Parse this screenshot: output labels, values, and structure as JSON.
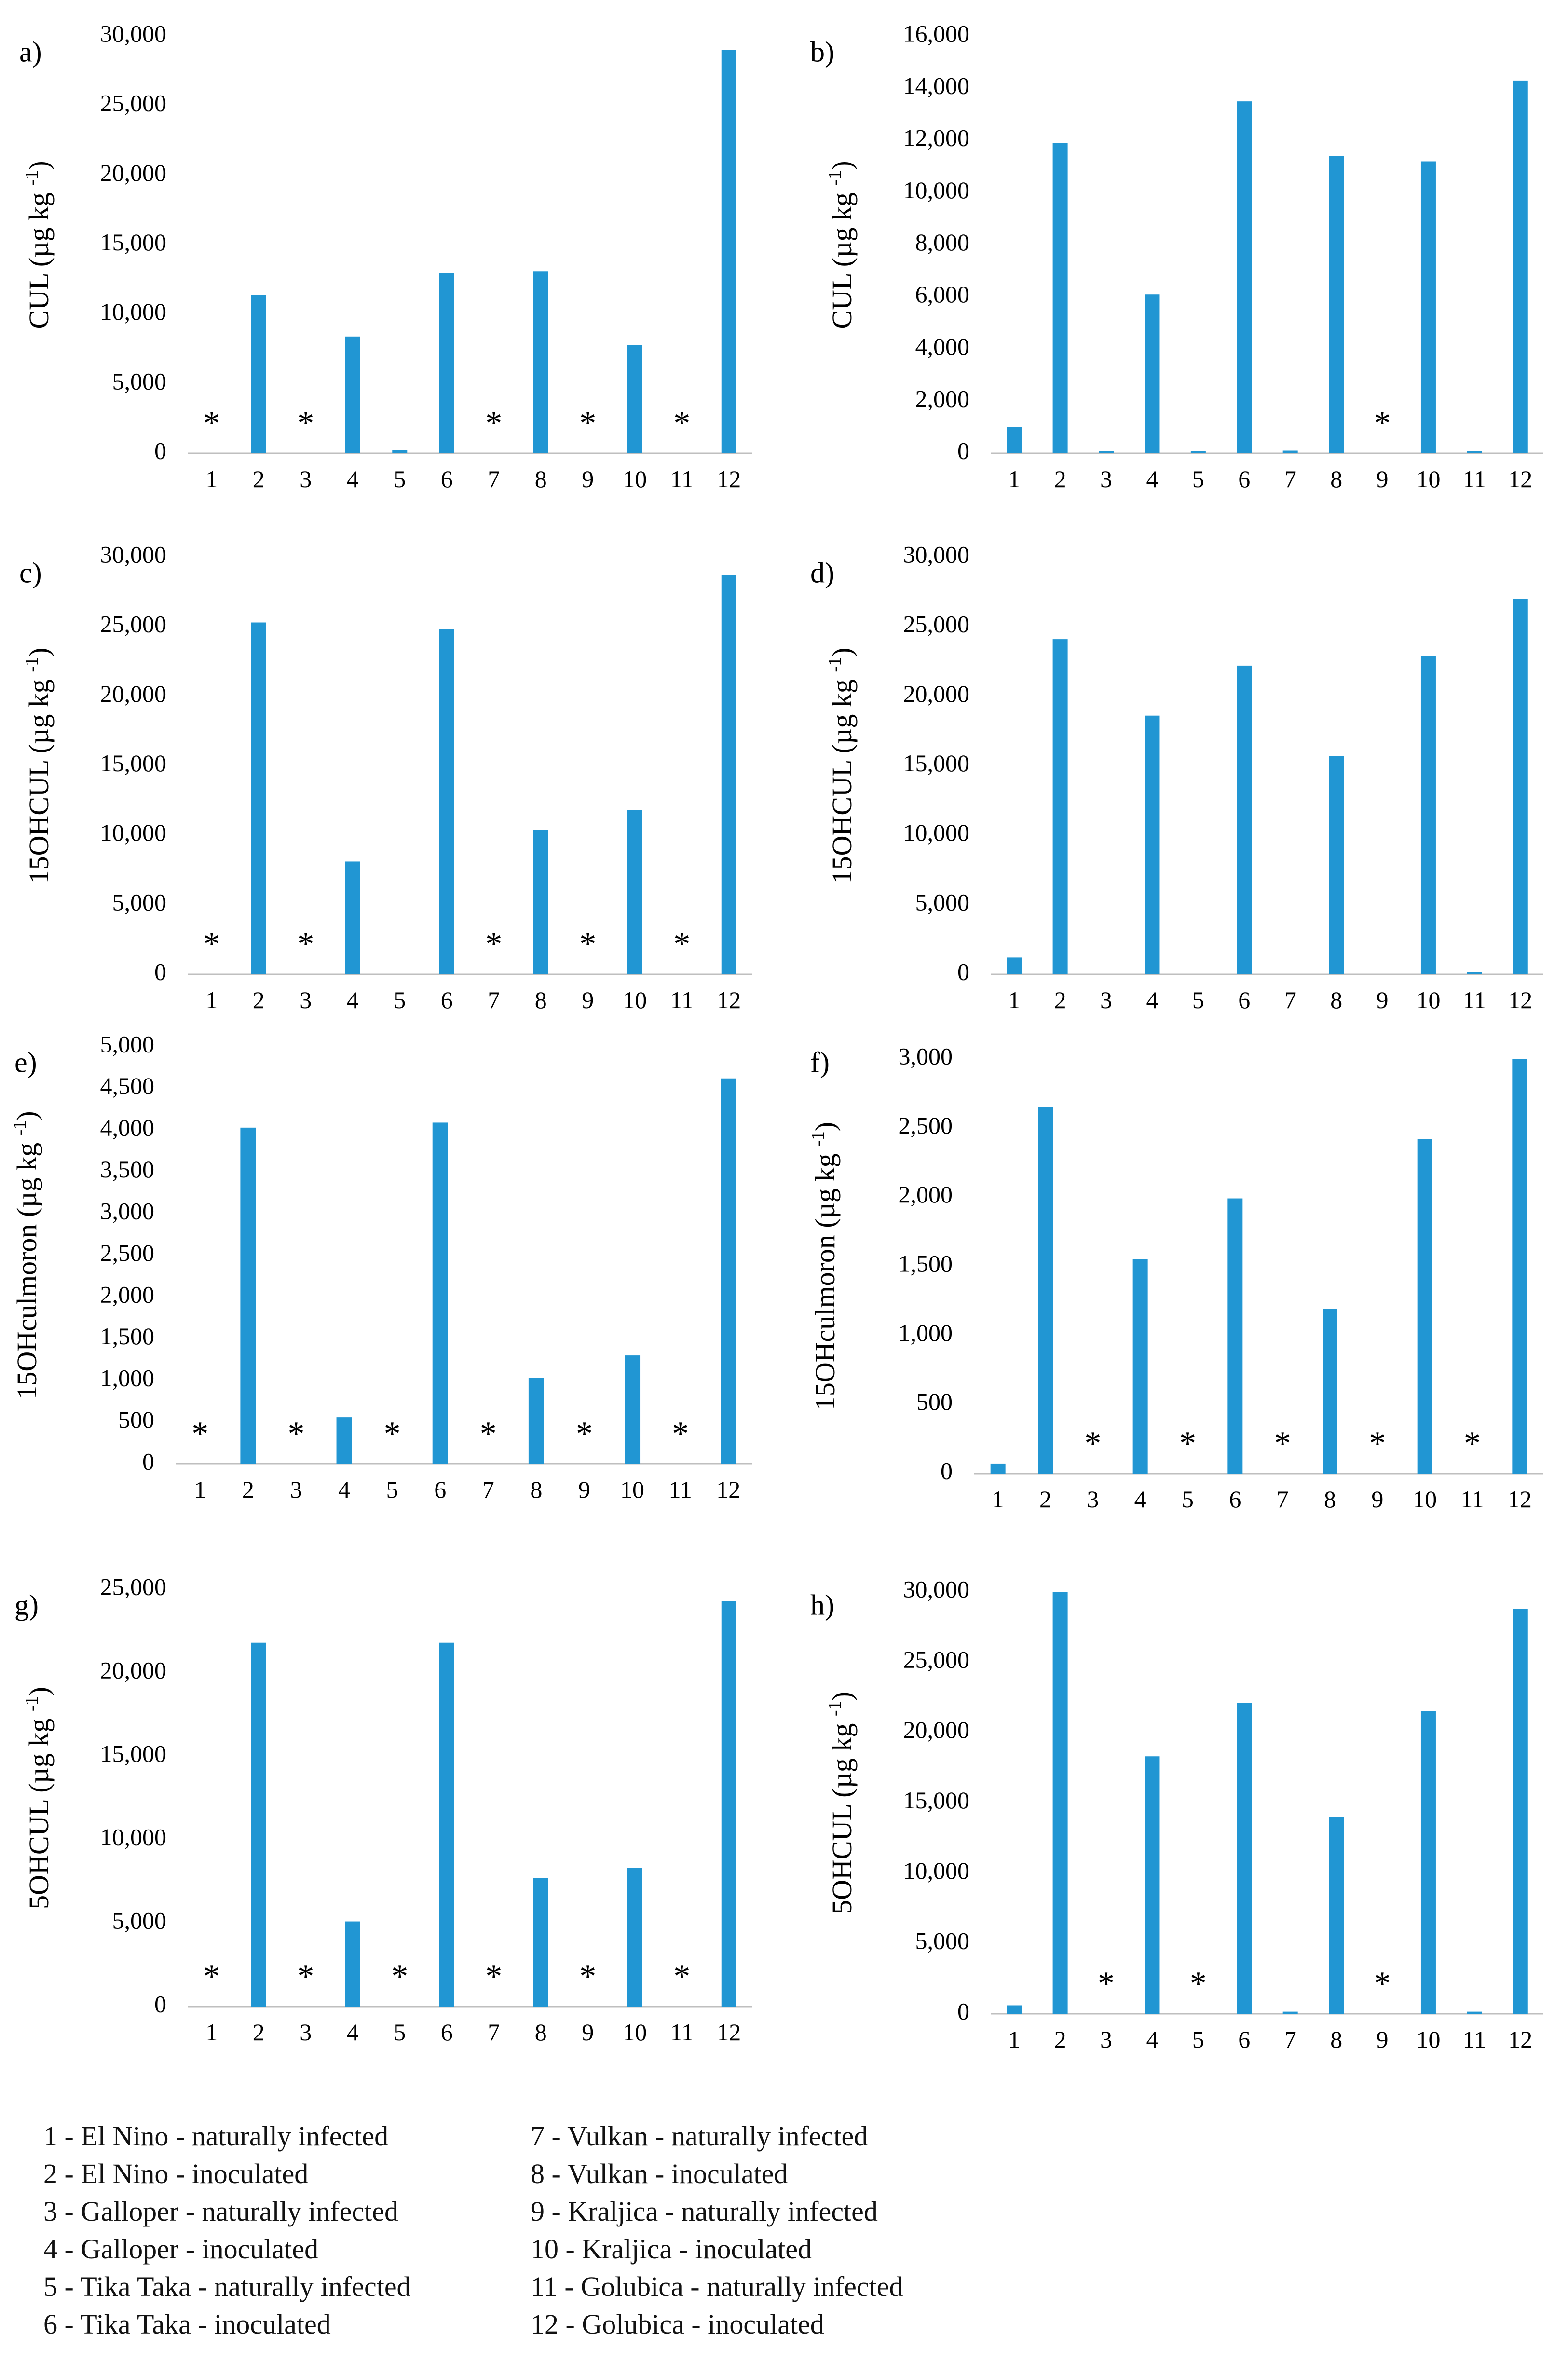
{
  "chart_data": [
    {
      "panel": "a)",
      "type": "bar",
      "ylabel": "CUL (µg kg",
      "ylabel_sup": "-1",
      "ylabel_close": ")",
      "categories": [
        "1",
        "2",
        "3",
        "4",
        "5",
        "6",
        "7",
        "8",
        "9",
        "10",
        "11",
        "12"
      ],
      "values": [
        0,
        11400,
        0,
        8400,
        250,
        13000,
        0,
        13100,
        0,
        7800,
        0,
        29000
      ],
      "ylim": [
        0,
        30000
      ],
      "yticks": [
        0,
        5000,
        10000,
        15000,
        20000,
        25000,
        30000
      ],
      "ytick_labels": [
        "0",
        "5,000",
        "10,000",
        "15,000",
        "20,000",
        "25,000",
        "30,000"
      ],
      "asterisks": [
        1,
        3,
        7,
        9,
        11
      ],
      "asterisk_label": "*",
      "color": "#2196d3"
    },
    {
      "panel": "b)",
      "type": "bar",
      "ylabel": "CUL (µg kg",
      "ylabel_sup": "-1",
      "ylabel_close": ")",
      "categories": [
        "1",
        "2",
        "3",
        "4",
        "5",
        "6",
        "7",
        "8",
        "9",
        "10",
        "11",
        "12"
      ],
      "values": [
        1000,
        11900,
        60,
        6100,
        50,
        13500,
        120,
        11400,
        0,
        11200,
        60,
        14300
      ],
      "ylim": [
        0,
        16000
      ],
      "yticks": [
        0,
        2000,
        4000,
        6000,
        8000,
        10000,
        12000,
        14000,
        16000
      ],
      "ytick_labels": [
        "0",
        "2,000",
        "4,000",
        "6,000",
        "8,000",
        "10,000",
        "12,000",
        "14,000",
        "16,000"
      ],
      "asterisks": [
        9
      ],
      "asterisk_label": "*",
      "color": "#2196d3"
    },
    {
      "panel": "c)",
      "type": "bar",
      "ylabel": "15OHCUL (µg kg",
      "ylabel_sup": "-1",
      "ylabel_close": ")",
      "categories": [
        "1",
        "2",
        "3",
        "4",
        "5",
        "6",
        "7",
        "8",
        "9",
        "10",
        "11",
        "12"
      ],
      "values": [
        0,
        25300,
        0,
        8100,
        0,
        24800,
        0,
        10400,
        0,
        11800,
        0,
        28700
      ],
      "ylim": [
        0,
        30000
      ],
      "yticks": [
        0,
        5000,
        10000,
        15000,
        20000,
        25000,
        30000
      ],
      "ytick_labels": [
        "0",
        "5,000",
        "10,000",
        "15,000",
        "20,000",
        "25,000",
        "30,000"
      ],
      "asterisks": [
        1,
        3,
        7,
        9,
        11
      ],
      "asterisk_label": "*",
      "color": "#2196d3"
    },
    {
      "panel": "d)",
      "type": "bar",
      "ylabel": "15OHCUL (µg kg",
      "ylabel_sup": "-1",
      "ylabel_close": ")",
      "categories": [
        "1",
        "2",
        "3",
        "4",
        "5",
        "6",
        "7",
        "8",
        "9",
        "10",
        "11",
        "12"
      ],
      "values": [
        1200,
        24100,
        0,
        18600,
        0,
        22200,
        0,
        15700,
        0,
        22900,
        60,
        27000
      ],
      "ylim": [
        0,
        30000
      ],
      "yticks": [
        0,
        5000,
        10000,
        15000,
        20000,
        25000,
        30000
      ],
      "ytick_labels": [
        "0",
        "5,000",
        "10,000",
        "15,000",
        "20,000",
        "25,000",
        "30,000"
      ],
      "asterisks": [],
      "asterisk_label": "*",
      "color": "#2196d3"
    },
    {
      "panel": "e)",
      "type": "bar",
      "ylabel": "15OHculmoron (µg kg",
      "ylabel_sup": "-1",
      "ylabel_close": ")",
      "categories": [
        "1",
        "2",
        "3",
        "4",
        "5",
        "6",
        "7",
        "8",
        "9",
        "10",
        "11",
        "12"
      ],
      "values": [
        0,
        4030,
        0,
        560,
        0,
        4090,
        0,
        1030,
        0,
        1300,
        0,
        4620
      ],
      "ylim": [
        0,
        5000
      ],
      "yticks": [
        0,
        500,
        1000,
        1500,
        2000,
        2500,
        3000,
        3500,
        4000,
        4500,
        5000
      ],
      "ytick_labels": [
        "0",
        "500",
        "1,000",
        "1,500",
        "2,000",
        "2,500",
        "3,000",
        "3,500",
        "4,000",
        "4,500",
        "5,000"
      ],
      "asterisks": [
        1,
        3,
        5,
        7,
        9,
        11
      ],
      "asterisk_label": "*",
      "color": "#2196d3"
    },
    {
      "panel": "f)",
      "type": "bar",
      "ylabel": "15OHculmoron (µg kg",
      "ylabel_sup": "-1",
      "ylabel_close": ")",
      "categories": [
        "1",
        "2",
        "3",
        "4",
        "5",
        "6",
        "7",
        "8",
        "9",
        "10",
        "11",
        "12"
      ],
      "values": [
        70,
        2650,
        0,
        1550,
        0,
        1990,
        0,
        1190,
        0,
        2420,
        0,
        3000
      ],
      "ylim": [
        0,
        3000
      ],
      "yticks": [
        0,
        500,
        1000,
        1500,
        2000,
        2500,
        3000
      ],
      "ytick_labels": [
        "0",
        "500",
        "1,000",
        "1,500",
        "2,000",
        "2,500",
        "3,000"
      ],
      "asterisks": [
        3,
        5,
        7,
        9,
        11
      ],
      "asterisk_label": "*",
      "color": "#2196d3"
    },
    {
      "panel": "g)",
      "type": "bar",
      "ylabel": "5OHCUL (µg kg",
      "ylabel_sup": "-1",
      "ylabel_close": ")",
      "categories": [
        "1",
        "2",
        "3",
        "4",
        "5",
        "6",
        "7",
        "8",
        "9",
        "10",
        "11",
        "12"
      ],
      "values": [
        0,
        21800,
        0,
        5100,
        0,
        21800,
        0,
        7700,
        0,
        8300,
        0,
        24300
      ],
      "ylim": [
        0,
        25000
      ],
      "yticks": [
        0,
        5000,
        10000,
        15000,
        20000,
        25000
      ],
      "ytick_labels": [
        "0",
        "5,000",
        "10,000",
        "15,000",
        "20,000",
        "25,000"
      ],
      "asterisks": [
        1,
        3,
        5,
        7,
        9,
        11
      ],
      "asterisk_label": "*",
      "color": "#2196d3"
    },
    {
      "panel": "h)",
      "type": "bar",
      "ylabel": "5OHCUL (µg kg",
      "ylabel_sup": "-1",
      "ylabel_close": ")",
      "categories": [
        "1",
        "2",
        "3",
        "4",
        "5",
        "6",
        "7",
        "8",
        "9",
        "10",
        "11",
        "12"
      ],
      "values": [
        600,
        30000,
        0,
        18300,
        0,
        22100,
        150,
        14000,
        0,
        21500,
        150,
        28800
      ],
      "ylim": [
        0,
        30000
      ],
      "yticks": [
        0,
        5000,
        10000,
        15000,
        20000,
        25000,
        30000
      ],
      "ytick_labels": [
        "0",
        "5,000",
        "10,000",
        "15,000",
        "20,000",
        "25,000",
        "30,000"
      ],
      "asterisks": [
        3,
        5,
        9
      ],
      "asterisk_label": "*",
      "color": "#2196d3"
    }
  ],
  "legend": {
    "left": [
      "1 - El Nino  - naturally infected",
      "2 - El Nino  - inoculated",
      "3 - Galloper - naturally infected",
      "4 - Galloper - inoculated",
      "5 - Tika Taka - naturally infected",
      "6 - Tika Taka - inoculated"
    ],
    "right": [
      "7 - Vulkan - naturally infected",
      "8 - Vulkan - inoculated",
      "9 - Kraljica - naturally infected",
      "10 - Kraljica - inoculated",
      "11 - Golubica - naturally infected",
      "12 - Golubica - inoculated"
    ]
  }
}
